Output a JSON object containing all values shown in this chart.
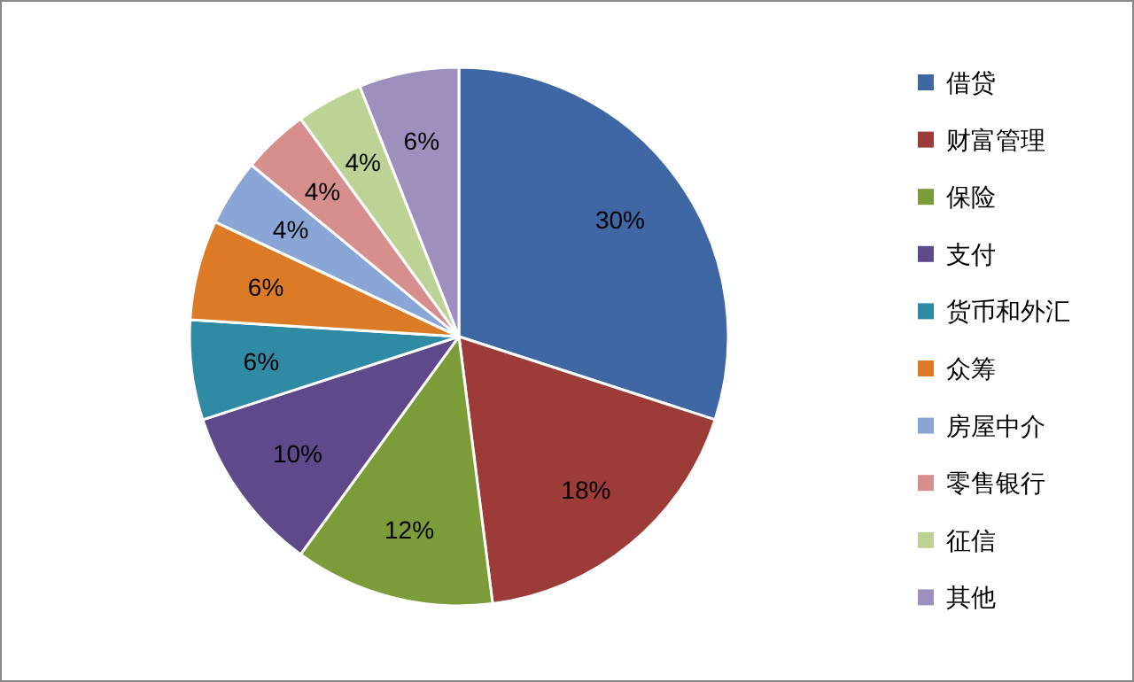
{
  "chart_data": {
    "type": "pie",
    "categories": [
      "借贷",
      "财富管理",
      "保险",
      "支付",
      "货币和外汇",
      "众筹",
      "房屋中介",
      "零售银行",
      "征信",
      "其他"
    ],
    "values": [
      30,
      18,
      12,
      10,
      6,
      6,
      4,
      4,
      4,
      6
    ],
    "colors": [
      "#3f67a3",
      "#9c3b38",
      "#7c9c3a",
      "#5e4a8a",
      "#2f8aa3",
      "#dd7a26",
      "#8aa6d6",
      "#d68f8c",
      "#bdd396",
      "#9e8fbf"
    ],
    "value_labels": [
      "30%",
      "18%",
      "12%",
      "10%",
      "6%",
      "6%",
      "4%",
      "4%",
      "4%",
      "6%"
    ],
    "legend": "right"
  }
}
